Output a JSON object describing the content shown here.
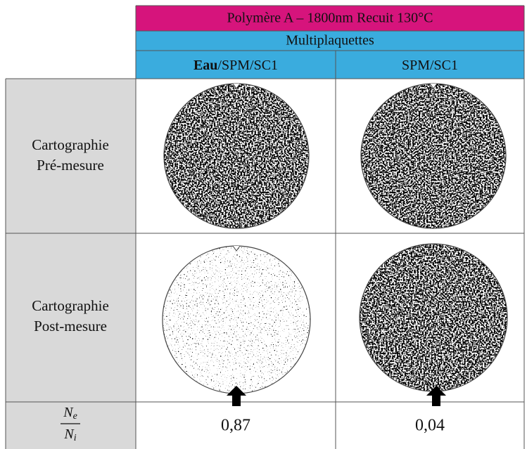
{
  "header": {
    "title": "Polymère A – 1800nm Recuit 130°C",
    "subtitle": "Multiplaquettes",
    "columns": [
      {
        "bold": "Eau",
        "rest": "/SPM/SC1"
      },
      {
        "bold": "",
        "rest": "SPM/SC1"
      }
    ]
  },
  "rows": [
    {
      "label": [
        "Cartographie",
        "Pré-mesure"
      ]
    },
    {
      "label": [
        "Cartographie",
        "Post-mesure"
      ]
    },
    {
      "fraction": {
        "numerator": {
          "base": "N",
          "sub": "e"
        },
        "denominator": {
          "base": "N",
          "sub": "i"
        }
      },
      "values": [
        "0,87",
        "0,04"
      ]
    }
  ]
}
